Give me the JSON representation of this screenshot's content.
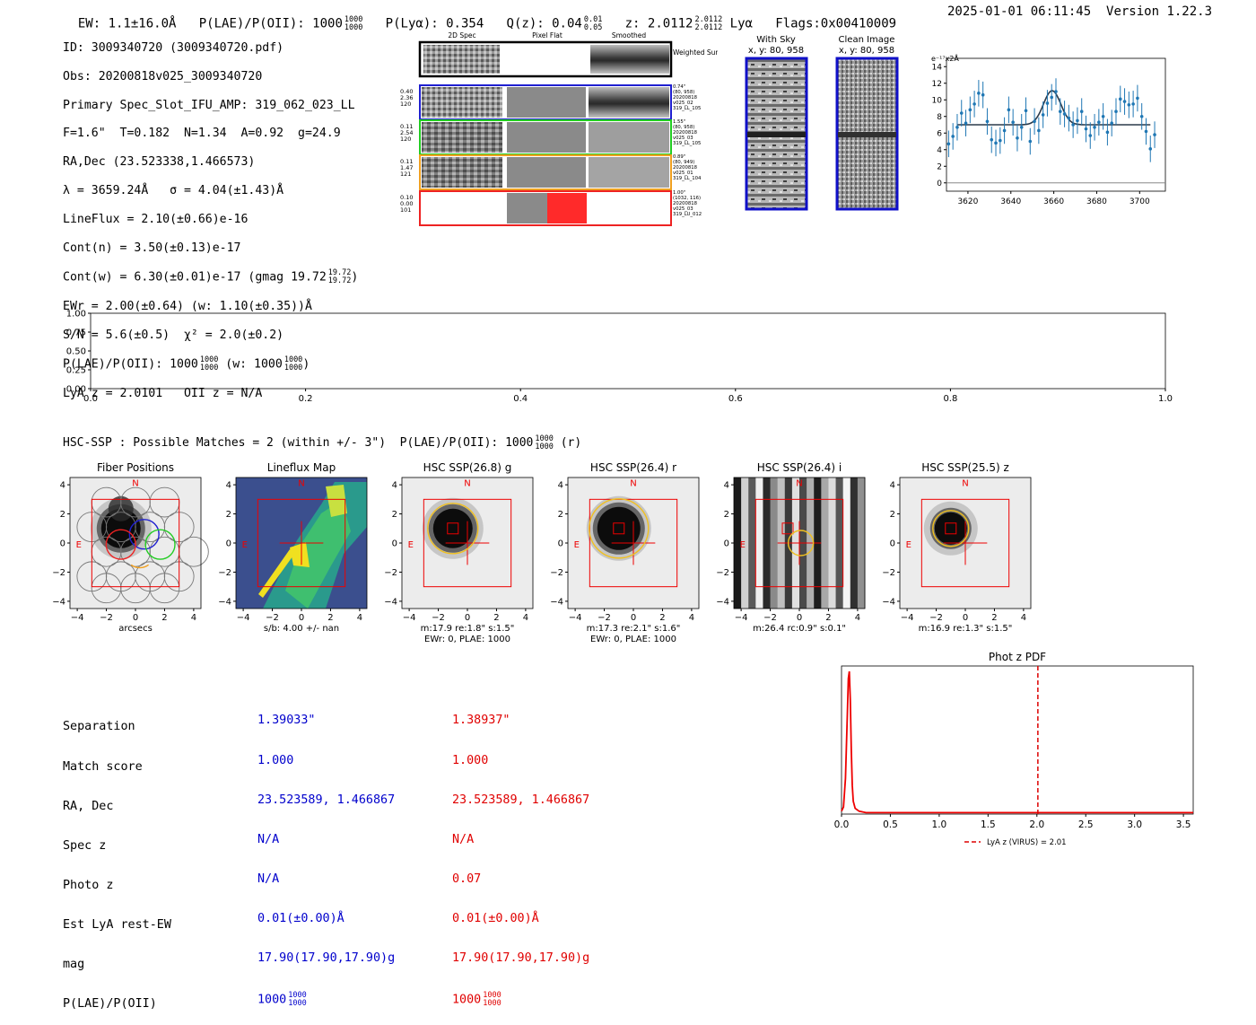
{
  "header": {
    "ew": "EW: 1.1±16.0Å",
    "plae": "P(LAE)/P(OII): 1000",
    "plae_hi": "1000",
    "plae_lo": "1000",
    "plya": "P(Lyα): 0.354",
    "qz": "Q(z): 0.04",
    "qz_hi": "0.01",
    "qz_lo": "0.05",
    "z": "z: 2.0112",
    "z_hi": "2.0112",
    "z_lo": "2.0112",
    "z_line": "Lyα",
    "flags": "Flags:0x00410009",
    "datetime": "2025-01-01 06:11:45",
    "version": "Version 1.22.3"
  },
  "info": {
    "id": "ID: 3009340720 (3009340720.pdf)",
    "obs": "Obs: 20200818v025_3009340720",
    "primary": "Primary Spec_Slot_IFU_AMP: 319_062_023_LL",
    "params": "F=1.6\"  T=0.182  N=1.34  A=0.92  g=24.9",
    "radec": "RA,Dec (23.523338,1.466573)",
    "lambda": "λ = 3659.24Å   σ = 4.04(±1.43)Å",
    "lineflux": "LineFlux = 2.10(±0.66)e-16",
    "contn": "Cont(n) = 3.50(±0.13)e-17",
    "contw": "Cont(w) = 6.30(±0.01)e-17 (gmag 19.72",
    "contw_hi": "19.72",
    "contw_lo": "19.72",
    "contw_end": ")",
    "ewr": "EWr = 2.00(±0.64) (w: 1.10(±0.35))Å",
    "sn": "S/N = 5.6(±0.5)  χ² = 2.0(±0.2)",
    "plae": "P(LAE)/P(OII): 1000",
    "plae_hi": "1000",
    "plae_lo": "1000",
    "plae_w": "(w: 1000",
    "plae_w_hi": "1000",
    "plae_w_lo": "1000",
    "plae_end": ")",
    "lyaz": "LyA z = 2.0101   OII z = N/A"
  },
  "spec_panel": {
    "col_titles": [
      "2D Spec",
      "Pixel Flat",
      "Smoothed"
    ],
    "weighted_sum": "Weighted\nSum",
    "rows": [
      {
        "left": "0.40\n2.36\n120",
        "right": "0.74\"\n(80, 958)\n20200818\nv025_02\n319_LL_105",
        "color": "#1f1fd0"
      },
      {
        "left": "0.11\n2.54\n120",
        "right": "1.55\"\n(80, 958)\n20200818\nv025_03\n319_LL_105",
        "color": "#22cc22"
      },
      {
        "left": "0.11\n1.47\n121",
        "right": "0.89\"\n(80, 949)\n20200818\nv025_01\n319_LL_104",
        "color": "#f0a020"
      },
      {
        "left": "0.10\n0.00\n101",
        "right": "1.00\"\n(1032, 116)\n20200818\nv025_03\n319_LU_012",
        "color": "#ee2222"
      }
    ]
  },
  "sky": {
    "with_sky": "With Sky",
    "with_sky_xy": "x, y: 80, 958",
    "clean": "Clean Image",
    "clean_xy": "x, y: 80, 958"
  },
  "chart_data": [
    {
      "type": "scatter",
      "title": "",
      "ylabel": "e⁻¹⁷x2Å",
      "xlim": [
        3610,
        3712
      ],
      "ylim": [
        -1,
        15
      ],
      "xticks": [
        3620,
        3640,
        3660,
        3680,
        3700
      ],
      "yticks": [
        0,
        2,
        4,
        6,
        8,
        10,
        12,
        14
      ],
      "x": [
        3611,
        3613,
        3615,
        3617,
        3619,
        3621,
        3623,
        3625,
        3627,
        3629,
        3631,
        3633,
        3635,
        3637,
        3639,
        3641,
        3643,
        3645,
        3647,
        3649,
        3651,
        3653,
        3655,
        3657,
        3659,
        3661,
        3663,
        3665,
        3667,
        3669,
        3671,
        3673,
        3675,
        3677,
        3679,
        3681,
        3683,
        3685,
        3687,
        3689,
        3691,
        3693,
        3695,
        3697,
        3699,
        3701,
        3703,
        3705,
        3707
      ],
      "y": [
        4.7,
        5.6,
        6.7,
        8.4,
        7.2,
        8.8,
        9.5,
        10.8,
        10.6,
        7.4,
        5.2,
        4.8,
        5.1,
        6.3,
        8.8,
        7.3,
        5.4,
        6.7,
        8.7,
        5.0,
        7.4,
        6.3,
        8.2,
        9.6,
        10.3,
        11.0,
        8.6,
        8.3,
        7.8,
        7.0,
        7.5,
        8.6,
        6.5,
        5.7,
        6.7,
        7.3,
        8.0,
        6.1,
        7.2,
        8.6,
        10.1,
        9.8,
        9.4,
        9.5,
        10.2,
        8.0,
        6.2,
        4.1,
        5.8
      ],
      "err": 1.6,
      "model_curve": {
        "baseline": 7.0,
        "peak": 11.1,
        "center": 3659.24,
        "sigma": 4.04,
        "xrange": [
          3615,
          3705
        ]
      }
    },
    {
      "type": "line",
      "title": "",
      "xlim": [
        0.0,
        1.0
      ],
      "ylim": [
        0.0,
        1.0
      ],
      "xticks": [
        "0.0",
        "0.2",
        "0.4",
        "0.6",
        "0.8",
        "1.0"
      ],
      "yticks": [
        "0.00",
        "0.25",
        "0.50",
        "0.75",
        "1.00"
      ],
      "series": []
    },
    {
      "type": "line",
      "title": "Phot z PDF",
      "xlim": [
        0.0,
        3.6
      ],
      "xticks": [
        "0.0",
        "0.5",
        "1.0",
        "1.5",
        "2.0",
        "2.5",
        "3.0",
        "3.5"
      ],
      "x": [
        0.0,
        0.02,
        0.04,
        0.06,
        0.07,
        0.08,
        0.09,
        0.1,
        0.11,
        0.12,
        0.14,
        0.18,
        0.25,
        0.5,
        1.0,
        2.0,
        3.0,
        3.6
      ],
      "y": [
        0.02,
        0.05,
        0.25,
        0.7,
        0.95,
        1.0,
        0.8,
        0.45,
        0.2,
        0.09,
        0.04,
        0.02,
        0.01,
        0.01,
        0.01,
        0.01,
        0.01,
        0.01
      ],
      "vline": {
        "x": 2.01,
        "label": "LyA z (VIRUS) = 2.01",
        "color": "#dd0000"
      }
    }
  ],
  "hsc_line": {
    "text": "HSC-SSP : Possible Matches = 2 (within +/- 3\")  P(LAE)/P(OII): 1000",
    "hi": "1000",
    "lo": "1000",
    "end": " (r)"
  },
  "thumbs": [
    {
      "title": "Fiber Positions",
      "cap1": "arcsecs",
      "cap2": ""
    },
    {
      "title": "Lineflux Map",
      "cap1": "s/b: 4.00 +/- nan",
      "cap2": ""
    },
    {
      "title": "HSC SSP(26.8) g",
      "cap1": "m:17.9  re:1.8\"  s:1.5\"",
      "cap2": "EWr: 0, PLAE: 1000"
    },
    {
      "title": "HSC SSP(26.4) r",
      "cap1": "m:17.3  re:2.1\"  s:1.6\"",
      "cap2": "EWr: 0, PLAE: 1000"
    },
    {
      "title": "HSC SSP(26.4) i",
      "cap1": "m:26.4 rc:0.9\"  s:0.1\"",
      "cap2": ""
    },
    {
      "title": "HSC SSP(25.5) z",
      "cap1": "m:16.9  re:1.3\"  s:1.5\"",
      "cap2": ""
    }
  ],
  "thumb_axis": {
    "ticks": [
      "−4",
      "−2",
      "0",
      "2",
      "4"
    ],
    "north": "N",
    "east": "E"
  },
  "match_table": {
    "labels": [
      "Separation",
      "Match score",
      "RA, Dec",
      "Spec z",
      "Photo z",
      "Est LyA rest-EW",
      "mag",
      "P(LAE)/P(OII)"
    ],
    "blue": [
      "1.39033\"",
      "1.000",
      "23.523589, 1.466867",
      "N/A",
      "N/A",
      "0.01(±0.00)Å",
      "17.90(17.90,17.90)g",
      "1000"
    ],
    "blue_hi": "1000",
    "blue_lo": "1000",
    "red": [
      "1.38937\"",
      "1.000",
      "23.523589, 1.466867",
      "N/A",
      "0.07",
      "0.01(±0.00)Å",
      "17.90(17.90,17.90)g",
      "1000"
    ],
    "red_hi": "1000",
    "red_lo": "1000"
  }
}
